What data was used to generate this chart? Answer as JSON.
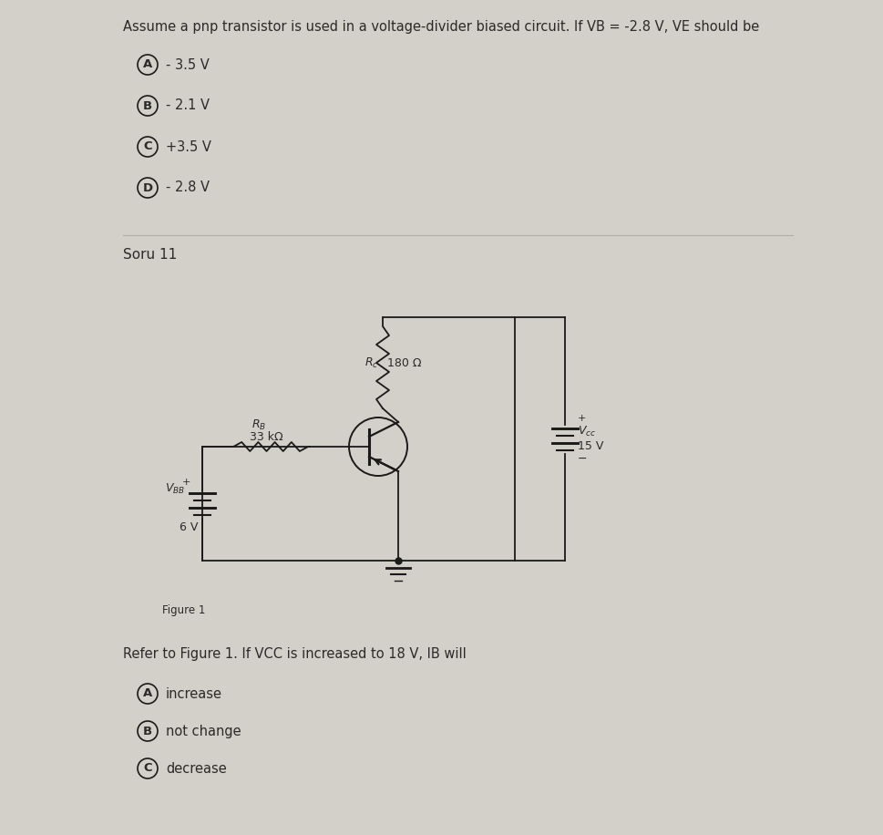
{
  "bg_color": "#d3cfc9",
  "text_color": "#2a2a2a",
  "line_color": "#1a1a1a",
  "title_q1": "Assume a pnp transistor is used in a voltage-divider biased circuit. If VB = -2.8 V, VE should be",
  "q1_options": [
    {
      "label": "A",
      "text": "- 3.5 V"
    },
    {
      "label": "B",
      "text": "- 2.1 V"
    },
    {
      "label": "C",
      "text": "+3.5 V"
    },
    {
      "label": "D",
      "text": "- 2.8 V"
    }
  ],
  "soru_label": "Soru 11",
  "figure_label": "Figure 1",
  "q2_title": "Refer to Figure 1. If VCC is increased to 18 V, IB will",
  "q2_options": [
    {
      "label": "A",
      "text": "increase"
    },
    {
      "label": "B",
      "text": "not change"
    },
    {
      "label": "C",
      "text": "decrease"
    }
  ],
  "font_size_title": 10.5,
  "font_size_options": 10.5,
  "font_size_soru": 11,
  "font_size_circuit": 9,
  "font_size_figure": 8.5
}
